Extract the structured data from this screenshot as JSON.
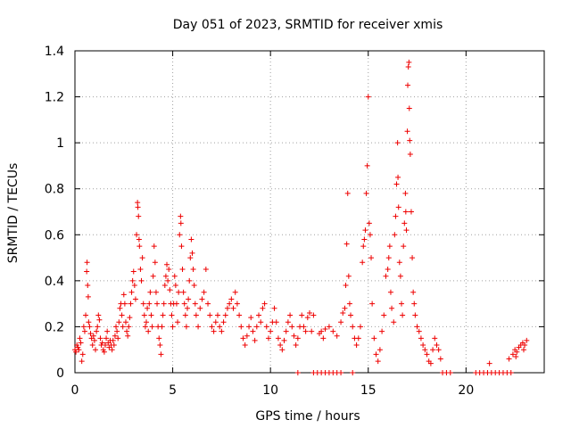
{
  "chart_data": {
    "type": "scatter",
    "title": "Day 051 of 2023, SRMTID for receiver xmis",
    "xlabel": "GPS time / hours",
    "ylabel": "SRMTID / TECUs",
    "xlim": [
      0,
      24
    ],
    "ylim": [
      0,
      1.4
    ],
    "xticks": [
      0,
      5,
      10,
      15,
      20
    ],
    "xtick_labels": [
      "0",
      "5",
      "10",
      "15",
      "20"
    ],
    "yticks": [
      0,
      0.2,
      0.4,
      0.6,
      0.8,
      1,
      1.2,
      1.4
    ],
    "ytick_labels": [
      "0",
      "0.2",
      "0.4",
      "0.6",
      "0.8",
      "1",
      "1.2",
      "1.4"
    ],
    "grid": true,
    "marker": "+",
    "color": "#ee0000",
    "series": [
      {
        "name": "SRMTID",
        "points": [
          [
            0.0,
            0.1
          ],
          [
            0.05,
            0.09
          ],
          [
            0.1,
            0.12
          ],
          [
            0.15,
            0.11
          ],
          [
            0.2,
            0.1
          ],
          [
            0.25,
            0.15
          ],
          [
            0.3,
            0.13
          ],
          [
            0.35,
            0.05
          ],
          [
            0.4,
            0.08
          ],
          [
            0.45,
            0.2
          ],
          [
            0.5,
            0.18
          ],
          [
            0.55,
            0.25
          ],
          [
            0.6,
            0.44
          ],
          [
            0.62,
            0.48
          ],
          [
            0.65,
            0.38
          ],
          [
            0.68,
            0.33
          ],
          [
            0.7,
            0.22
          ],
          [
            0.75,
            0.2
          ],
          [
            0.8,
            0.17
          ],
          [
            0.85,
            0.15
          ],
          [
            0.9,
            0.12
          ],
          [
            0.95,
            0.16
          ],
          [
            1.0,
            0.14
          ],
          [
            1.05,
            0.1
          ],
          [
            1.1,
            0.18
          ],
          [
            1.15,
            0.2
          ],
          [
            1.2,
            0.25
          ],
          [
            1.25,
            0.23
          ],
          [
            1.3,
            0.15
          ],
          [
            1.35,
            0.12
          ],
          [
            1.4,
            0.13
          ],
          [
            1.45,
            0.1
          ],
          [
            1.5,
            0.09
          ],
          [
            1.55,
            0.12
          ],
          [
            1.6,
            0.15
          ],
          [
            1.65,
            0.18
          ],
          [
            1.7,
            0.13
          ],
          [
            1.75,
            0.11
          ],
          [
            1.8,
            0.14
          ],
          [
            1.85,
            0.12
          ],
          [
            1.9,
            0.1
          ],
          [
            1.95,
            0.14
          ],
          [
            2.0,
            0.12
          ],
          [
            2.05,
            0.16
          ],
          [
            2.1,
            0.2
          ],
          [
            2.15,
            0.18
          ],
          [
            2.2,
            0.15
          ],
          [
            2.25,
            0.22
          ],
          [
            2.3,
            0.28
          ],
          [
            2.35,
            0.3
          ],
          [
            2.4,
            0.25
          ],
          [
            2.45,
            0.2
          ],
          [
            2.5,
            0.34
          ],
          [
            2.55,
            0.3
          ],
          [
            2.6,
            0.22
          ],
          [
            2.65,
            0.18
          ],
          [
            2.7,
            0.16
          ],
          [
            2.75,
            0.2
          ],
          [
            2.8,
            0.24
          ],
          [
            2.85,
            0.3
          ],
          [
            2.9,
            0.35
          ],
          [
            2.95,
            0.4
          ],
          [
            3.0,
            0.44
          ],
          [
            3.05,
            0.38
          ],
          [
            3.1,
            0.32
          ],
          [
            3.15,
            0.6
          ],
          [
            3.2,
            0.74
          ],
          [
            3.22,
            0.72
          ],
          [
            3.25,
            0.68
          ],
          [
            3.28,
            0.58
          ],
          [
            3.3,
            0.55
          ],
          [
            3.35,
            0.45
          ],
          [
            3.4,
            0.4
          ],
          [
            3.45,
            0.5
          ],
          [
            3.5,
            0.3
          ],
          [
            3.55,
            0.25
          ],
          [
            3.6,
            0.2
          ],
          [
            3.65,
            0.22
          ],
          [
            3.7,
            0.28
          ],
          [
            3.75,
            0.18
          ],
          [
            3.8,
            0.3
          ],
          [
            3.85,
            0.35
          ],
          [
            3.9,
            0.25
          ],
          [
            3.95,
            0.2
          ],
          [
            4.0,
            0.42
          ],
          [
            4.05,
            0.55
          ],
          [
            4.1,
            0.48
          ],
          [
            4.15,
            0.35
          ],
          [
            4.2,
            0.3
          ],
          [
            4.25,
            0.2
          ],
          [
            4.3,
            0.15
          ],
          [
            4.35,
            0.12
          ],
          [
            4.4,
            0.08
          ],
          [
            4.45,
            0.2
          ],
          [
            4.5,
            0.25
          ],
          [
            4.55,
            0.3
          ],
          [
            4.6,
            0.38
          ],
          [
            4.65,
            0.42
          ],
          [
            4.7,
            0.47
          ],
          [
            4.75,
            0.4
          ],
          [
            4.8,
            0.45
          ],
          [
            4.85,
            0.36
          ],
          [
            4.9,
            0.3
          ],
          [
            4.95,
            0.25
          ],
          [
            5.0,
            0.2
          ],
          [
            5.05,
            0.3
          ],
          [
            5.1,
            0.42
          ],
          [
            5.15,
            0.38
          ],
          [
            5.2,
            0.3
          ],
          [
            5.25,
            0.22
          ],
          [
            5.3,
            0.35
          ],
          [
            5.35,
            0.6
          ],
          [
            5.4,
            0.68
          ],
          [
            5.42,
            0.65
          ],
          [
            5.45,
            0.55
          ],
          [
            5.5,
            0.45
          ],
          [
            5.55,
            0.35
          ],
          [
            5.6,
            0.3
          ],
          [
            5.65,
            0.25
          ],
          [
            5.7,
            0.2
          ],
          [
            5.75,
            0.28
          ],
          [
            5.8,
            0.32
          ],
          [
            5.85,
            0.4
          ],
          [
            5.9,
            0.5
          ],
          [
            5.95,
            0.58
          ],
          [
            6.0,
            0.52
          ],
          [
            6.05,
            0.45
          ],
          [
            6.1,
            0.38
          ],
          [
            6.15,
            0.3
          ],
          [
            6.2,
            0.25
          ],
          [
            6.3,
            0.2
          ],
          [
            6.4,
            0.28
          ],
          [
            6.5,
            0.32
          ],
          [
            6.6,
            0.35
          ],
          [
            6.7,
            0.45
          ],
          [
            6.8,
            0.3
          ],
          [
            6.9,
            0.25
          ],
          [
            7.0,
            0.2
          ],
          [
            7.1,
            0.18
          ],
          [
            7.2,
            0.22
          ],
          [
            7.3,
            0.25
          ],
          [
            7.4,
            0.2
          ],
          [
            7.5,
            0.18
          ],
          [
            7.6,
            0.22
          ],
          [
            7.7,
            0.25
          ],
          [
            7.8,
            0.28
          ],
          [
            7.9,
            0.3
          ],
          [
            8.0,
            0.32
          ],
          [
            8.1,
            0.28
          ],
          [
            8.2,
            0.35
          ],
          [
            8.3,
            0.3
          ],
          [
            8.4,
            0.25
          ],
          [
            8.5,
            0.2
          ],
          [
            8.6,
            0.15
          ],
          [
            8.7,
            0.12
          ],
          [
            8.8,
            0.16
          ],
          [
            8.9,
            0.2
          ],
          [
            9.0,
            0.24
          ],
          [
            9.1,
            0.18
          ],
          [
            9.2,
            0.14
          ],
          [
            9.3,
            0.2
          ],
          [
            9.4,
            0.25
          ],
          [
            9.5,
            0.22
          ],
          [
            9.6,
            0.28
          ],
          [
            9.7,
            0.3
          ],
          [
            9.8,
            0.2
          ],
          [
            9.9,
            0.15
          ],
          [
            10.0,
            0.18
          ],
          [
            10.1,
            0.22
          ],
          [
            10.2,
            0.28
          ],
          [
            10.3,
            0.22
          ],
          [
            10.4,
            0.15
          ],
          [
            10.5,
            0.12
          ],
          [
            10.6,
            0.1
          ],
          [
            10.7,
            0.14
          ],
          [
            10.8,
            0.18
          ],
          [
            10.9,
            0.22
          ],
          [
            11.0,
            0.25
          ],
          [
            11.1,
            0.2
          ],
          [
            11.2,
            0.16
          ],
          [
            11.3,
            0.12
          ],
          [
            11.4,
            0.15
          ],
          [
            11.5,
            0.2
          ],
          [
            11.6,
            0.25
          ],
          [
            11.7,
            0.2
          ],
          [
            11.8,
            0.18
          ],
          [
            11.9,
            0.24
          ],
          [
            12.0,
            0.26
          ],
          [
            12.1,
            0.18
          ],
          [
            12.2,
            0.25
          ],
          [
            11.4,
            0.0
          ],
          [
            12.2,
            0.0
          ],
          [
            12.4,
            0.0
          ],
          [
            12.6,
            0.0
          ],
          [
            12.8,
            0.0
          ],
          [
            13.0,
            0.0
          ],
          [
            13.2,
            0.0
          ],
          [
            13.4,
            0.0
          ],
          [
            13.6,
            0.0
          ],
          [
            14.2,
            0.0
          ],
          [
            12.5,
            0.17
          ],
          [
            12.6,
            0.18
          ],
          [
            12.7,
            0.15
          ],
          [
            12.8,
            0.19
          ],
          [
            13.0,
            0.2
          ],
          [
            13.2,
            0.18
          ],
          [
            13.4,
            0.16
          ],
          [
            13.6,
            0.22
          ],
          [
            13.7,
            0.26
          ],
          [
            13.8,
            0.28
          ],
          [
            13.85,
            0.38
          ],
          [
            13.9,
            0.56
          ],
          [
            13.95,
            0.78
          ],
          [
            14.0,
            0.42
          ],
          [
            14.05,
            0.3
          ],
          [
            14.1,
            0.25
          ],
          [
            14.2,
            0.2
          ],
          [
            14.3,
            0.15
          ],
          [
            14.4,
            0.12
          ],
          [
            14.5,
            0.15
          ],
          [
            14.6,
            0.2
          ],
          [
            14.7,
            0.48
          ],
          [
            14.75,
            0.55
          ],
          [
            14.8,
            0.58
          ],
          [
            14.85,
            0.62
          ],
          [
            14.9,
            0.78
          ],
          [
            14.95,
            0.9
          ],
          [
            15.0,
            1.2
          ],
          [
            15.05,
            0.65
          ],
          [
            15.1,
            0.6
          ],
          [
            15.15,
            0.5
          ],
          [
            15.2,
            0.3
          ],
          [
            15.3,
            0.15
          ],
          [
            15.4,
            0.08
          ],
          [
            15.5,
            0.05
          ],
          [
            15.6,
            0.1
          ],
          [
            15.7,
            0.18
          ],
          [
            15.8,
            0.25
          ],
          [
            15.9,
            0.42
          ],
          [
            16.0,
            0.45
          ],
          [
            16.05,
            0.5
          ],
          [
            16.1,
            0.55
          ],
          [
            16.15,
            0.35
          ],
          [
            16.2,
            0.28
          ],
          [
            16.3,
            0.22
          ],
          [
            16.35,
            0.6
          ],
          [
            16.4,
            0.68
          ],
          [
            16.45,
            0.82
          ],
          [
            16.5,
            1.0
          ],
          [
            16.52,
            0.85
          ],
          [
            16.55,
            0.72
          ],
          [
            16.6,
            0.48
          ],
          [
            16.65,
            0.42
          ],
          [
            16.7,
            0.3
          ],
          [
            16.75,
            0.25
          ],
          [
            16.8,
            0.55
          ],
          [
            16.85,
            0.65
          ],
          [
            16.9,
            0.78
          ],
          [
            16.92,
            0.7
          ],
          [
            16.95,
            0.62
          ],
          [
            17.0,
            1.05
          ],
          [
            17.02,
            1.25
          ],
          [
            17.05,
            1.33
          ],
          [
            17.08,
            1.35
          ],
          [
            17.1,
            1.15
          ],
          [
            17.12,
            1.01
          ],
          [
            17.15,
            0.95
          ],
          [
            17.2,
            0.7
          ],
          [
            17.25,
            0.5
          ],
          [
            17.3,
            0.35
          ],
          [
            17.35,
            0.3
          ],
          [
            17.4,
            0.25
          ],
          [
            17.5,
            0.2
          ],
          [
            17.6,
            0.18
          ],
          [
            17.7,
            0.15
          ],
          [
            17.8,
            0.12
          ],
          [
            17.9,
            0.1
          ],
          [
            18.0,
            0.08
          ],
          [
            18.1,
            0.05
          ],
          [
            18.2,
            0.04
          ],
          [
            18.3,
            0.1
          ],
          [
            18.4,
            0.15
          ],
          [
            18.5,
            0.12
          ],
          [
            18.6,
            0.1
          ],
          [
            18.7,
            0.06
          ],
          [
            18.8,
            0.0
          ],
          [
            19.0,
            0.0
          ],
          [
            19.2,
            0.0
          ],
          [
            20.5,
            0.0
          ],
          [
            20.7,
            0.0
          ],
          [
            20.9,
            0.0
          ],
          [
            21.1,
            0.0
          ],
          [
            21.3,
            0.0
          ],
          [
            21.5,
            0.0
          ],
          [
            21.7,
            0.0
          ],
          [
            21.9,
            0.0
          ],
          [
            22.1,
            0.0
          ],
          [
            22.3,
            0.0
          ],
          [
            21.2,
            0.04
          ],
          [
            22.2,
            0.06
          ],
          [
            22.4,
            0.08
          ],
          [
            22.5,
            0.1
          ],
          [
            22.6,
            0.09
          ],
          [
            22.7,
            0.11
          ],
          [
            22.8,
            0.12
          ],
          [
            22.9,
            0.13
          ],
          [
            23.0,
            0.12
          ],
          [
            23.1,
            0.14
          ],
          [
            22.55,
            0.07
          ],
          [
            22.95,
            0.1
          ]
        ]
      }
    ]
  }
}
